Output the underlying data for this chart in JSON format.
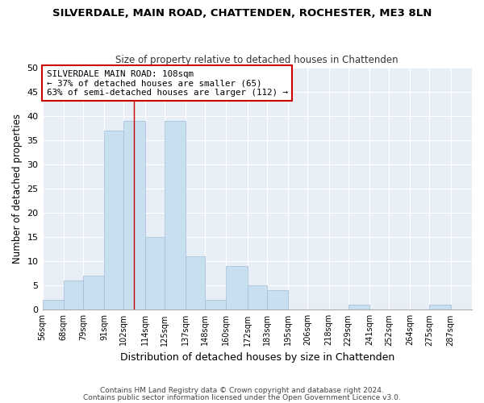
{
  "title": "SILVERDALE, MAIN ROAD, CHATTENDEN, ROCHESTER, ME3 8LN",
  "subtitle": "Size of property relative to detached houses in Chattenden",
  "xlabel": "Distribution of detached houses by size in Chattenden",
  "ylabel": "Number of detached properties",
  "bar_edges": [
    56,
    68,
    79,
    91,
    102,
    114,
    125,
    137,
    148,
    160,
    172,
    183,
    195,
    206,
    218,
    229,
    241,
    252,
    264,
    275,
    287,
    299
  ],
  "bar_heights": [
    2,
    6,
    7,
    37,
    39,
    15,
    39,
    11,
    2,
    9,
    5,
    4,
    0,
    0,
    0,
    1,
    0,
    0,
    0,
    1,
    0
  ],
  "bar_color": "#c8dff0",
  "bar_edgecolor": "#a0bcd8",
  "property_line_x": 108,
  "property_line_color": "#cc0000",
  "annotation_line1": "SILVERDALE MAIN ROAD: 108sqm",
  "annotation_line2": "← 37% of detached houses are smaller (65)",
  "annotation_line3": "63% of semi-detached houses are larger (112) →",
  "ylim": [
    0,
    50
  ],
  "yticks": [
    0,
    5,
    10,
    15,
    20,
    25,
    30,
    35,
    40,
    45,
    50
  ],
  "tick_labels": [
    "56sqm",
    "68sqm",
    "79sqm",
    "91sqm",
    "102sqm",
    "114sqm",
    "125sqm",
    "137sqm",
    "148sqm",
    "160sqm",
    "172sqm",
    "183sqm",
    "195sqm",
    "206sqm",
    "218sqm",
    "229sqm",
    "241sqm",
    "252sqm",
    "264sqm",
    "275sqm",
    "287sqm"
  ],
  "footer_line1": "Contains HM Land Registry data © Crown copyright and database right 2024.",
  "footer_line2": "Contains public sector information licensed under the Open Government Licence v3.0.",
  "background_color": "#ffffff",
  "plot_bg_color": "#e8eef5",
  "grid_color": "#ffffff",
  "title_fontsize": 9.5,
  "subtitle_fontsize": 8.5
}
